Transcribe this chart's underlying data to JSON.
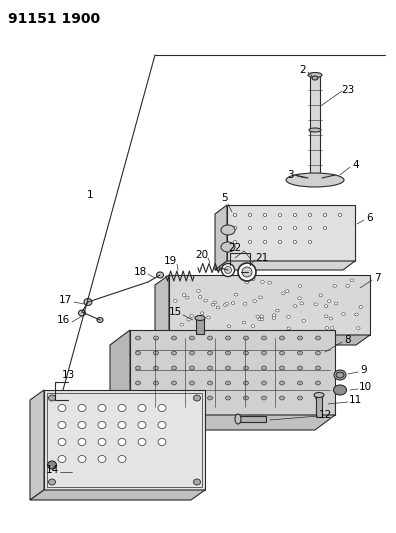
{
  "title": "91151 1900",
  "background_color": "#ffffff",
  "line_color": "#2a2a2a",
  "title_fontsize": 10,
  "label_fontsize": 7.5,
  "fig_width": 3.96,
  "fig_height": 5.33,
  "dpi": 100
}
